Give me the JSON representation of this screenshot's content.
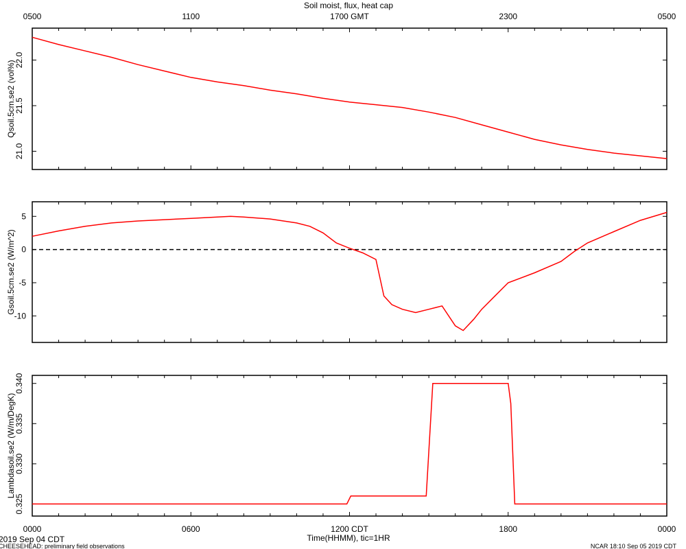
{
  "title": "Soil moist, flux, heat cap",
  "top_axis": {
    "ticks": [
      "0500",
      "1100",
      "1700 GMT",
      "2300",
      "0500"
    ]
  },
  "bottom_axis": {
    "ticks": [
      "0000",
      "0600",
      "1200 CDT",
      "1800",
      "0000"
    ],
    "label": "Time(HHMM), tic=1HR"
  },
  "footer": {
    "date": "2019 Sep 04 CDT",
    "left_note": "CHEESEHEAD: preliminary field observations",
    "right_note": "NCAR 18:10 Sep 05 2019 CDT"
  },
  "colors": {
    "series": "#ff0000",
    "axes": "#000000",
    "zero_line": "#000000"
  },
  "chart_data": [
    {
      "type": "line",
      "ylabel": "Qsoil.5cm.se2 (vol%)",
      "xlim": [
        0,
        24
      ],
      "ylim": [
        20.8,
        22.35
      ],
      "yticks": [
        21.0,
        21.5,
        22.0
      ],
      "ytick_labels": [
        "21.0",
        "21.5",
        "22.0"
      ],
      "x": [
        0,
        1,
        2,
        3,
        4,
        5,
        6,
        7,
        8,
        9,
        10,
        11,
        12,
        13,
        14,
        15,
        16,
        17,
        18,
        19,
        20,
        21,
        22,
        23,
        24
      ],
      "series": [
        {
          "values": [
            22.25,
            22.17,
            22.1,
            22.03,
            21.95,
            21.88,
            21.81,
            21.76,
            21.72,
            21.67,
            21.63,
            21.58,
            21.54,
            21.51,
            21.48,
            21.43,
            21.37,
            21.29,
            21.21,
            21.13,
            21.07,
            21.02,
            20.98,
            20.95,
            20.92
          ]
        }
      ]
    },
    {
      "type": "line",
      "ylabel": "Gsoil.5cm.se2 (W/m^2)",
      "xlim": [
        0,
        24
      ],
      "ylim": [
        -14,
        7.2
      ],
      "yticks": [
        -10,
        -5,
        0,
        5
      ],
      "ytick_labels": [
        "-10",
        "-5",
        "0",
        "5"
      ],
      "zero_line": true,
      "x": [
        0,
        1,
        2,
        3,
        4,
        5,
        6,
        7,
        7.5,
        8,
        9,
        10,
        10.5,
        11,
        11.5,
        12,
        12.5,
        13,
        13.3,
        13.6,
        14,
        14.5,
        15,
        15.5,
        16,
        16.3,
        16.7,
        17,
        17.5,
        18,
        19,
        20,
        20.5,
        21,
        22,
        23,
        24
      ],
      "series": [
        {
          "values": [
            2.0,
            2.8,
            3.5,
            4.0,
            4.3,
            4.5,
            4.7,
            4.9,
            5.0,
            4.9,
            4.6,
            4.0,
            3.5,
            2.5,
            1.0,
            0.2,
            -0.5,
            -1.5,
            -7.0,
            -8.3,
            -9.0,
            -9.5,
            -9.0,
            -8.5,
            -11.5,
            -12.2,
            -10.5,
            -9.0,
            -7.0,
            -5.0,
            -3.5,
            -1.8,
            -0.3,
            1.0,
            2.7,
            4.4,
            5.6
          ]
        }
      ]
    },
    {
      "type": "line",
      "ylabel": "Lambdasoil.se2 (W/m/DegK)",
      "xlim": [
        0,
        24
      ],
      "ylim": [
        0.3235,
        0.341
      ],
      "yticks": [
        0.325,
        0.33,
        0.335,
        0.34
      ],
      "ytick_labels": [
        "0.325",
        "0.330",
        "0.335",
        "0.340"
      ],
      "x": [
        0,
        11.9,
        12.05,
        12.3,
        14.9,
        15.15,
        18.0,
        18.1,
        18.25,
        24
      ],
      "series": [
        {
          "values": [
            0.325,
            0.325,
            0.326,
            0.326,
            0.326,
            0.34,
            0.34,
            0.3375,
            0.325,
            0.325
          ]
        }
      ]
    }
  ]
}
